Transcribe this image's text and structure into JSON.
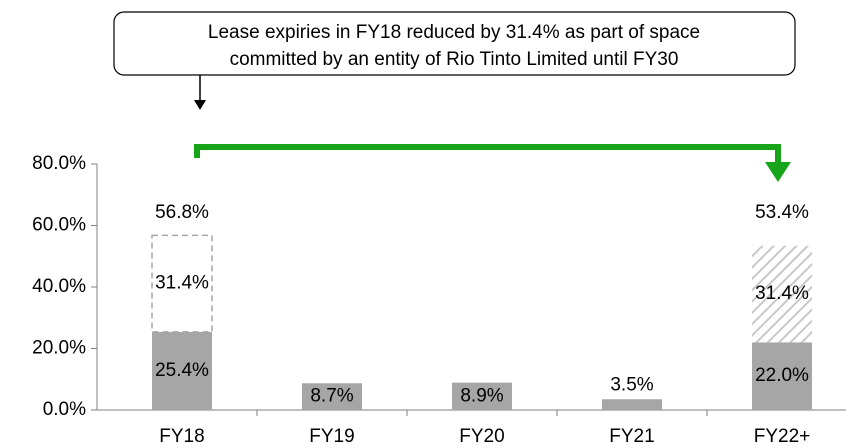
{
  "chart_data": {
    "type": "stacked_bar",
    "annotation": [
      "Lease expiries in FY18 reduced by 31.4% as part of space",
      "committed by an entity of Rio Tinto Limited until FY30"
    ],
    "categories": [
      "FY18",
      "FY19",
      "FY20",
      "FY21",
      "FY22+"
    ],
    "series": [
      {
        "color": "#a6a6a6",
        "values": [
          25.4,
          8.7,
          8.9,
          3.5,
          22.0
        ],
        "value_labels": [
          "25.4%",
          "8.7%",
          "8.9%",
          "3.5%",
          "22.0%"
        ]
      },
      {
        "color": "#a6a6a6",
        "patterns": [
          "dashed",
          null,
          null,
          null,
          "hatched"
        ],
        "values": [
          31.4,
          null,
          null,
          null,
          31.4
        ],
        "value_labels": [
          "31.4%",
          null,
          null,
          null,
          "31.4%"
        ]
      }
    ],
    "totals": [
      56.8,
      null,
      null,
      null,
      53.4
    ],
    "total_labels": [
      "56.8%",
      null,
      null,
      null,
      "53.4%"
    ],
    "ylim": [
      0,
      80
    ],
    "yticks": [
      {
        "value": 0,
        "label": "0.0%"
      },
      {
        "value": 20,
        "label": "20.0%"
      },
      {
        "value": 40,
        "label": "40.0%"
      },
      {
        "value": 60,
        "label": "60.0%"
      },
      {
        "value": 80,
        "label": "80.0%"
      }
    ],
    "arrow_color": "#18a418"
  }
}
